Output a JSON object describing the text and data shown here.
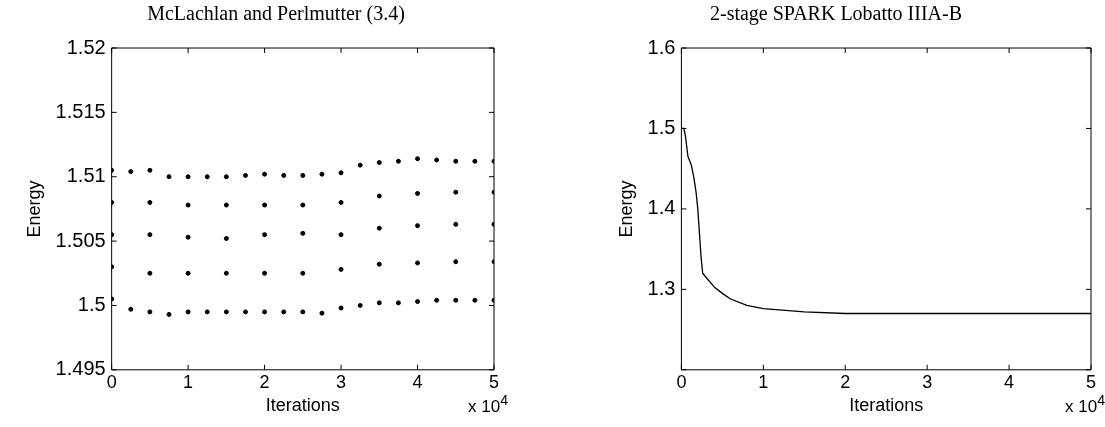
{
  "chart_data": [
    {
      "type": "scatter",
      "title": "McLachlan and Perlmutter (3.4)",
      "xlabel": "Iterations",
      "ylabel": "Energy",
      "marker": "circle",
      "grid": false,
      "xlim": [
        0,
        5
      ],
      "xticks": [
        0,
        1,
        2,
        3,
        4,
        5
      ],
      "ylim": [
        1.495,
        1.52
      ],
      "yticks": [
        1.495,
        1.5,
        1.505,
        1.51,
        1.515,
        1.52
      ],
      "annotations": [
        "x 10$^{4}$"
      ],
      "series": [
        {
          "color": "#000000",
          "x": [
            0,
            0,
            0,
            0,
            0,
            0.5,
            0.5,
            0.5,
            0.5,
            0.5,
            1,
            1,
            1,
            1,
            1,
            1.5,
            1.5,
            1.5,
            1.5,
            1.5,
            2,
            2,
            2,
            2,
            2,
            2.5,
            2.5,
            2.5,
            2.5,
            2.5,
            3,
            3,
            3,
            3,
            3,
            3.5,
            3.5,
            3.5,
            3.5,
            3.5,
            4,
            4,
            4,
            4,
            4,
            4.5,
            4.5,
            4.5,
            4.5,
            4.5,
            5,
            5,
            5,
            5,
            5,
            0.25,
            0.75,
            1.25,
            1.75,
            2.25,
            2.75,
            3.25,
            3.75,
            4.25,
            4.75,
            0.25,
            0.75,
            1.25,
            1.75,
            2.25,
            2.75,
            3.25,
            3.75,
            4.25,
            4.75
          ],
          "values": [
            1.5105,
            1.508,
            1.5055,
            1.503,
            1.5005,
            1.5105,
            1.508,
            1.5055,
            1.5025,
            1.4995,
            1.51,
            1.5078,
            1.5053,
            1.5025,
            1.4995,
            1.51,
            1.5078,
            1.5052,
            1.5025,
            1.4995,
            1.5102,
            1.5078,
            1.5055,
            1.5025,
            1.4995,
            1.5101,
            1.5078,
            1.5056,
            1.5025,
            1.4995,
            1.5103,
            1.508,
            1.5055,
            1.5028,
            1.4998,
            1.5111,
            1.5085,
            1.506,
            1.5032,
            1.5002,
            1.5114,
            1.5087,
            1.5062,
            1.5033,
            1.5003,
            1.5112,
            1.5088,
            1.5063,
            1.5034,
            1.5004,
            1.5112,
            1.5088,
            1.5063,
            1.5034,
            1.5004,
            1.5104,
            1.51,
            1.51,
            1.5101,
            1.5101,
            1.5102,
            1.5109,
            1.5112,
            1.5113,
            1.5112,
            1.4997,
            1.4993,
            1.4995,
            1.4995,
            1.4995,
            1.4994,
            1.5,
            1.5002,
            1.5004,
            1.5004
          ]
        }
      ]
    },
    {
      "type": "line",
      "title": "2-stage SPARK Lobatto IIIA-B",
      "xlabel": "Iterations",
      "ylabel": "Energy",
      "marker": "none",
      "line_style": "solid",
      "grid": false,
      "xlim": [
        0,
        5
      ],
      "xticks": [
        0,
        1,
        2,
        3,
        4,
        5
      ],
      "ylim": [
        1.2,
        1.6
      ],
      "yticks": [
        {
          "value": 1.2,
          "label": null
        },
        1.3,
        1.4,
        1.5,
        1.6
      ],
      "annotations": [
        "x 10$^{4}$"
      ],
      "series": [
        {
          "color": "#000000",
          "x": [
            0,
            0.03,
            0.05,
            0.08,
            0.12,
            0.15,
            0.18,
            0.2,
            0.22,
            0.24,
            0.26,
            0.3,
            0.4,
            0.5,
            0.6,
            0.8,
            1,
            1.5,
            2,
            3,
            4,
            5
          ],
          "values": [
            1.5,
            1.5,
            1.49,
            1.465,
            1.455,
            1.44,
            1.42,
            1.4,
            1.37,
            1.34,
            1.32,
            1.315,
            1.303,
            1.295,
            1.288,
            1.28,
            1.276,
            1.272,
            1.27,
            1.27,
            1.27,
            1.27
          ]
        }
      ]
    }
  ]
}
